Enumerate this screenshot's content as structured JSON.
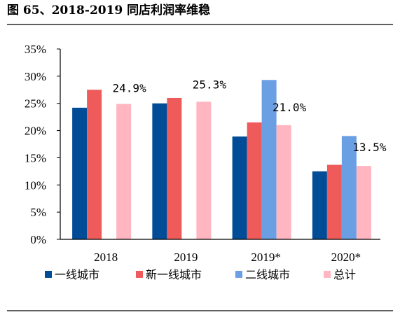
{
  "figure": {
    "title": "图 65、2018-2019 同店利润率维稳"
  },
  "chart_data": {
    "type": "bar",
    "categories": [
      "2018",
      "2019",
      "2019*",
      "2020*"
    ],
    "series": [
      {
        "name": "一线城市",
        "color": "#004C97",
        "values": [
          24.2,
          25.0,
          18.9,
          12.5
        ]
      },
      {
        "name": "新一线城市",
        "color": "#EF5B5B",
        "values": [
          27.5,
          26.0,
          21.5,
          13.7
        ]
      },
      {
        "name": "二线城市",
        "color": "#6B9FE4",
        "values": [
          null,
          null,
          29.3,
          19.0
        ]
      },
      {
        "name": "总计",
        "color": "#FFB6C1",
        "values": [
          24.9,
          25.3,
          21.0,
          13.5
        ]
      }
    ],
    "data_labels": [
      "24.9%",
      "25.3%",
      "21.0%",
      "13.5%"
    ],
    "y_ticks": [
      "0%",
      "5%",
      "10%",
      "15%",
      "20%",
      "25%",
      "30%",
      "35%"
    ],
    "ylim": [
      0,
      35
    ],
    "grid": false,
    "legend_position": "bottom"
  }
}
